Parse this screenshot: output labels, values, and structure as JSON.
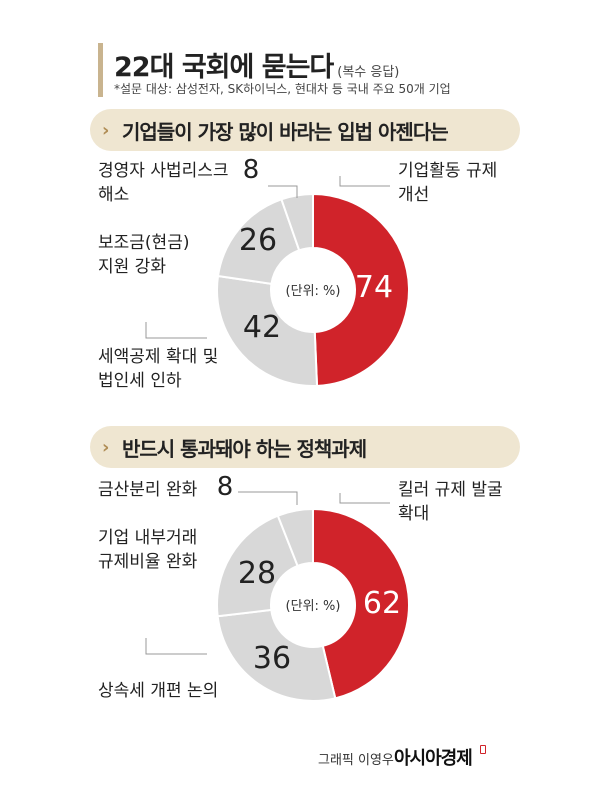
{
  "header": {
    "title": "22대 국회에 묻는다",
    "title_note": "(복수 응답)",
    "survey_note": "*설문 대상: 삼성전자, SK하이닉스, 현대차 등 국내 주요 50개 기업"
  },
  "sections": [
    {
      "label": "기업들이 가장 많이 바라는 입법 아젠다는"
    },
    {
      "label": "반드시 통과돼야 하는 정책과제"
    }
  ],
  "colors": {
    "highlight": "#d0232a",
    "others": "#d8d8d8",
    "section_bg": "#efe6d1",
    "accent": "#b08d55"
  },
  "chart_data": [
    {
      "type": "pie",
      "title": "기업들이 가장 많이 바라는 입법 아젠다는",
      "unit_label": "(단위: %)",
      "slices": [
        {
          "label": "기업활동 규제 개선",
          "value": 74
        },
        {
          "label": "세액공제 확대 및 법인세 인하",
          "value": 42
        },
        {
          "label": "보조금(현금) 지원 강화",
          "value": 26
        },
        {
          "label": "경영자 사법리스크 해소",
          "value": 8
        }
      ]
    },
    {
      "type": "pie",
      "title": "반드시 통과돼야 하는 정책과제",
      "unit_label": "(단위: %)",
      "slices": [
        {
          "label": "킬러 규제 발굴 확대",
          "value": 62
        },
        {
          "label": "상속세 개편 논의",
          "value": 36
        },
        {
          "label": "기업 내부거래 규제비율 완화",
          "value": 28
        },
        {
          "label": "금산분리 완화",
          "value": 8
        }
      ]
    }
  ],
  "label_lines": [
    [
      [
        "기업활동 규제",
        "개선"
      ],
      [
        "세액공제 확대 및",
        "법인세 인하"
      ],
      [
        "보조금(현금)",
        "지원 강화"
      ],
      [
        "경영자 사법리스크",
        "해소"
      ]
    ],
    [
      [
        "킬러 규제 발굴",
        "확대"
      ],
      [
        "상속세 개편 논의"
      ],
      [
        "기업 내부거래",
        "규제비율 완화"
      ],
      [
        "금산분리 완화"
      ]
    ]
  ],
  "footer": {
    "credit": "그래픽 이영우",
    "brand": "아시아경제"
  }
}
